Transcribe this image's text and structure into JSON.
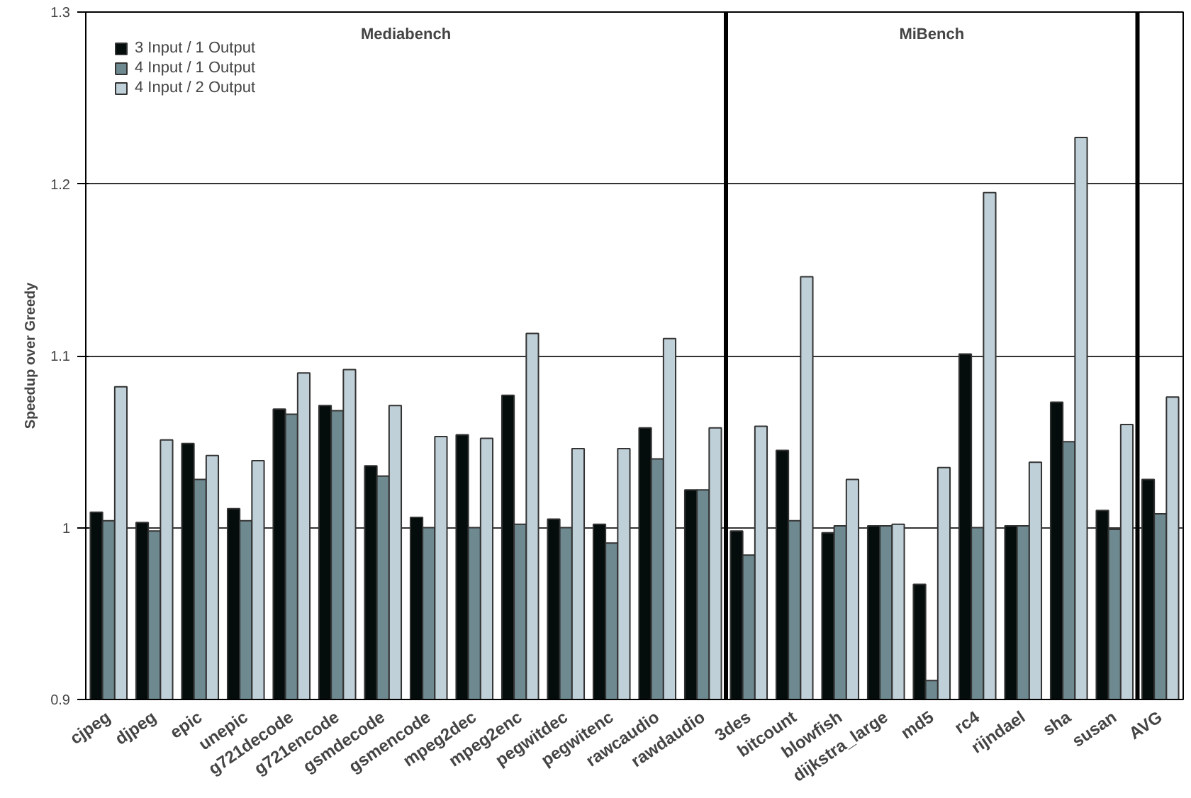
{
  "chart_data": {
    "type": "bar",
    "ylabel": "Speedup over Greedy",
    "categories": [
      "cjpeg",
      "djpeg",
      "epic",
      "unepic",
      "g721decode",
      "g721encode",
      "gsmdecode",
      "gsmencode",
      "mpeg2dec",
      "mpeg2enc",
      "pegwitdec",
      "pegwitenc",
      "rawcaudio",
      "rawdaudio",
      "3des",
      "bitcount",
      "blowfish",
      "dijkstra_large",
      "md5",
      "rc4",
      "rijndael",
      "sha",
      "susan",
      "AVG"
    ],
    "series": [
      {
        "name": "3 Input / 1 Output",
        "color": "#050c0c",
        "values": [
          1.009,
          1.003,
          1.049,
          1.011,
          1.069,
          1.071,
          1.036,
          1.006,
          1.054,
          1.077,
          1.005,
          1.002,
          1.058,
          1.022,
          0.998,
          1.045,
          0.997,
          1.001,
          0.967,
          1.101,
          1.001,
          1.073,
          1.01,
          1.028
        ]
      },
      {
        "name": "4 Input / 1 Output",
        "color": "#6e8a90",
        "values": [
          1.004,
          0.998,
          1.028,
          1.004,
          1.066,
          1.068,
          1.03,
          1.0,
          1.0,
          1.002,
          1.0,
          0.991,
          1.04,
          1.022,
          0.984,
          1.004,
          1.001,
          1.001,
          0.911,
          1.0,
          1.001,
          1.05,
          0.999,
          1.008
        ]
      },
      {
        "name": "4 Input / 2 Output",
        "color": "#c0d0d8",
        "values": [
          1.082,
          1.051,
          1.042,
          1.039,
          1.09,
          1.092,
          1.071,
          1.053,
          1.052,
          1.113,
          1.046,
          1.046,
          1.11,
          1.058,
          1.059,
          1.146,
          1.028,
          1.002,
          1.035,
          1.195,
          1.038,
          1.227,
          1.06,
          1.076
        ]
      }
    ],
    "ylim": [
      0.9,
      1.3
    ],
    "yticks": [
      0.9,
      1,
      1.1,
      1.2,
      1.3
    ],
    "annotations": [
      "Mediabench",
      "MiBench"
    ],
    "grid": "y",
    "legend": "top left"
  }
}
